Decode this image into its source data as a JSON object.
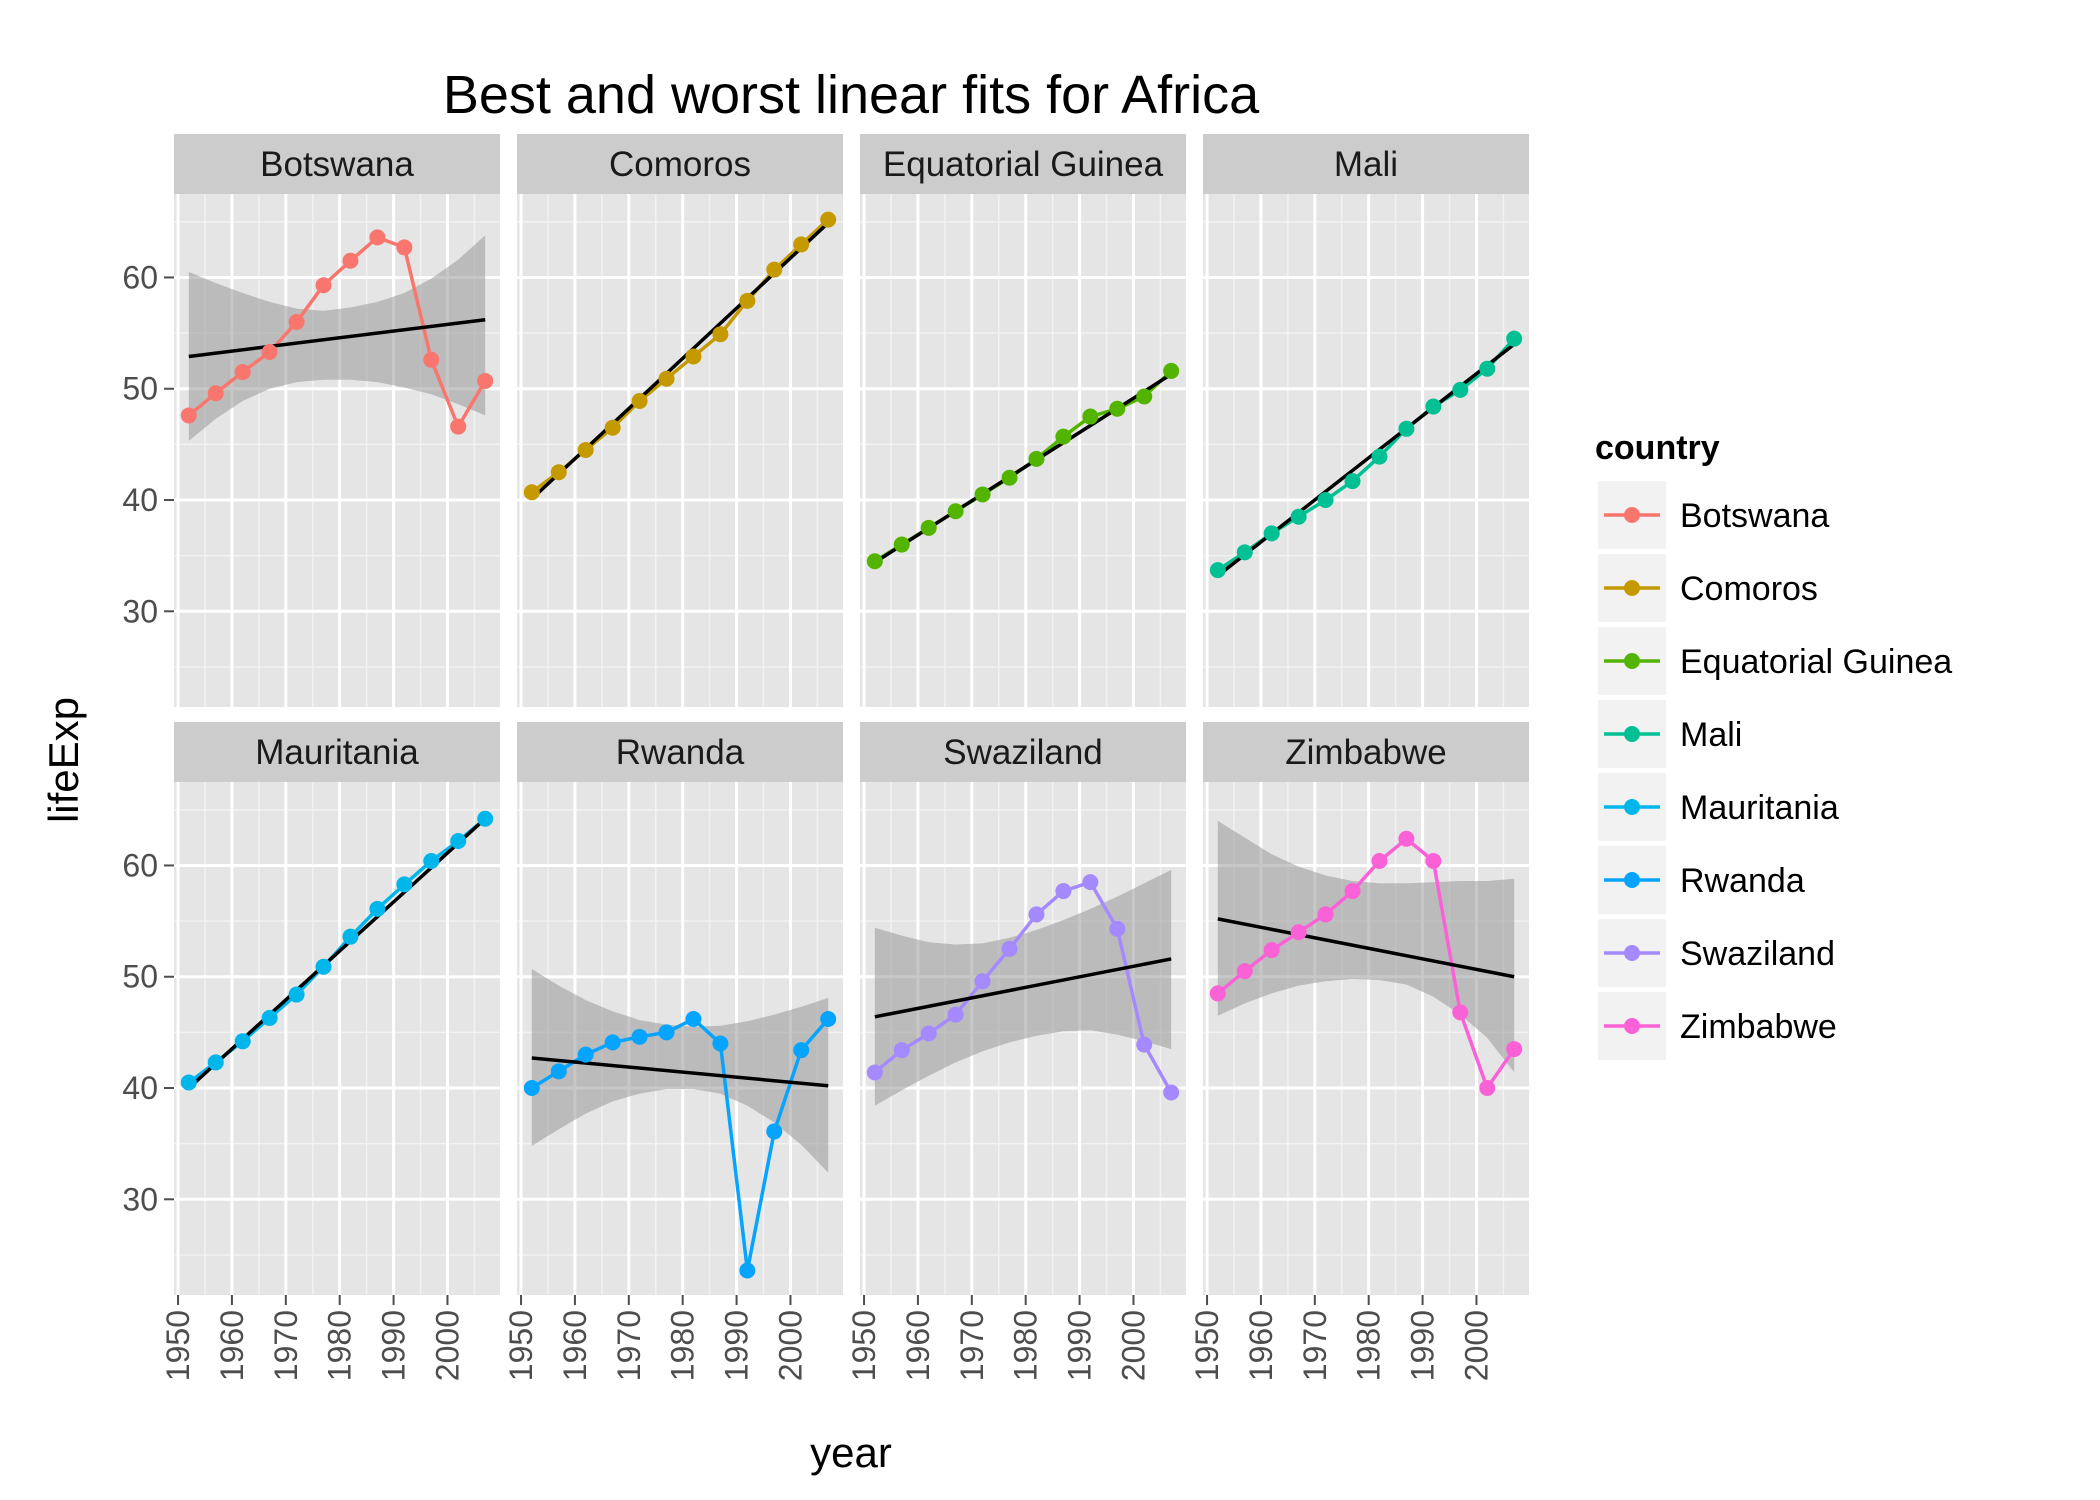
{
  "chart_data": {
    "type": "line",
    "title": "Best and worst linear fits for Africa",
    "xlabel": "year",
    "ylabel": "lifeExp",
    "xlim": [
      1949.25,
      2009.75
    ],
    "ylim": [
      21.4,
      67.5
    ],
    "x_ticks": [
      1950,
      1960,
      1970,
      1980,
      1990,
      2000
    ],
    "y_ticks": [
      30,
      40,
      50,
      60
    ],
    "grid": true,
    "layout": "facet 2x4",
    "legend": {
      "title": "country",
      "placement": "right"
    },
    "x": [
      1952,
      1957,
      1962,
      1967,
      1972,
      1977,
      1982,
      1987,
      1992,
      1997,
      2002,
      2007
    ],
    "series": [
      {
        "name": "Botswana",
        "color": "#F8766D",
        "values": [
          47.6,
          49.6,
          51.5,
          53.3,
          56.0,
          59.3,
          61.5,
          63.6,
          62.7,
          52.6,
          46.6,
          50.7
        ],
        "fit": {
          "start": 52.9,
          "end": 56.2
        },
        "ci": {
          "lower": [
            45.3,
            47.3,
            48.9,
            50.0,
            50.6,
            50.8,
            50.8,
            50.6,
            50.1,
            49.5,
            48.6,
            47.6
          ],
          "upper": [
            60.5,
            59.5,
            58.6,
            57.8,
            57.2,
            57.0,
            57.3,
            57.8,
            58.6,
            59.9,
            61.6,
            63.8
          ]
        }
      },
      {
        "name": "Comoros",
        "color": "#C49A00",
        "values": [
          40.7,
          42.5,
          44.5,
          46.5,
          48.9,
          50.9,
          52.9,
          54.9,
          57.9,
          60.7,
          62.97,
          65.2
        ],
        "fit": {
          "start": 40.1,
          "end": 64.9
        }
      },
      {
        "name": "Equatorial Guinea",
        "color": "#53B400",
        "values": [
          34.5,
          36.0,
          37.5,
          38.99,
          40.5,
          42.0,
          43.7,
          45.7,
          47.5,
          48.2,
          49.3,
          51.6
        ],
        "fit": {
          "start": 34.4,
          "end": 51.3
        }
      },
      {
        "name": "Mali",
        "color": "#00C094",
        "values": [
          33.7,
          35.3,
          37.0,
          38.5,
          40.0,
          41.7,
          43.9,
          46.4,
          48.4,
          49.9,
          51.8,
          54.5
        ],
        "fit": {
          "start": 33.2,
          "end": 54.0
        }
      },
      {
        "name": "Mauritania",
        "color": "#00B6EB",
        "values": [
          40.5,
          42.3,
          44.2,
          46.3,
          48.4,
          50.9,
          53.6,
          56.1,
          58.3,
          60.4,
          62.2,
          64.2
        ],
        "fit": {
          "start": 40.0,
          "end": 64.2
        }
      },
      {
        "name": "Rwanda",
        "color": "#06A4FF",
        "values": [
          40.0,
          41.5,
          43.0,
          44.1,
          44.6,
          45.0,
          46.2,
          44.0,
          23.6,
          36.1,
          43.4,
          46.2
        ],
        "fit": {
          "start": 42.7,
          "end": 40.2
        },
        "ci": {
          "lower": [
            34.8,
            36.3,
            37.7,
            38.8,
            39.5,
            39.9,
            39.9,
            39.5,
            38.4,
            36.9,
            34.9,
            32.4
          ],
          "upper": [
            50.7,
            49.2,
            47.9,
            46.9,
            46.1,
            45.7,
            45.5,
            45.6,
            46.0,
            46.6,
            47.3,
            48.1
          ]
        }
      },
      {
        "name": "Swaziland",
        "color": "#A58AFF",
        "values": [
          41.4,
          43.4,
          44.9,
          46.6,
          49.6,
          52.5,
          55.6,
          57.7,
          58.5,
          54.3,
          43.9,
          39.6
        ],
        "fit": {
          "start": 46.4,
          "end": 51.6
        },
        "ci": {
          "lower": [
            38.4,
            39.8,
            41.1,
            42.3,
            43.3,
            44.1,
            44.7,
            45.1,
            45.2,
            44.8,
            44.2,
            43.5
          ],
          "upper": [
            54.4,
            53.7,
            53.1,
            52.9,
            53.0,
            53.5,
            54.2,
            55.1,
            56.1,
            57.2,
            58.4,
            59.6
          ]
        }
      },
      {
        "name": "Zimbabwe",
        "color": "#FB61D7",
        "values": [
          48.5,
          50.5,
          52.4,
          54.0,
          55.6,
          57.7,
          60.4,
          62.4,
          60.4,
          46.8,
          40.0,
          43.5
        ],
        "fit": {
          "start": 55.2,
          "end": 50.0
        },
        "ci": {
          "lower": [
            46.5,
            47.6,
            48.5,
            49.2,
            49.6,
            49.8,
            49.7,
            49.3,
            48.2,
            46.6,
            44.5,
            41.4
          ],
          "upper": [
            64.0,
            62.5,
            61.0,
            59.9,
            59.1,
            58.6,
            58.4,
            58.4,
            58.5,
            58.6,
            58.6,
            58.8
          ]
        }
      }
    ]
  }
}
